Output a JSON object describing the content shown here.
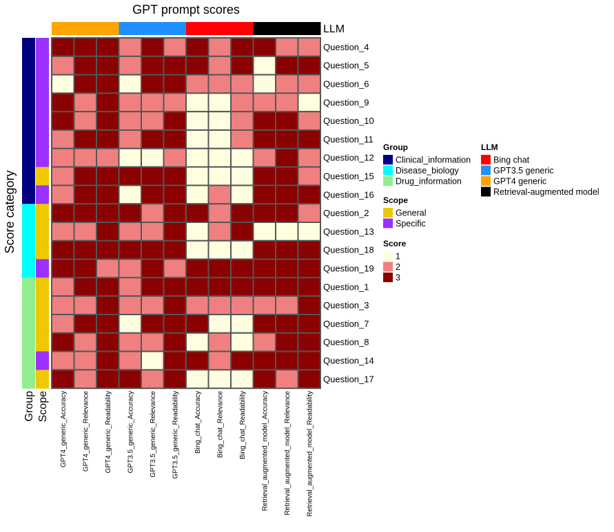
{
  "chart_data": {
    "type": "heatmap",
    "title": "GPT prompt scores",
    "ylabel": "Score category",
    "columns": [
      "GPT4_generic_Accuracy",
      "GPT4_generic_Relevance",
      "GPT4_generic_Readability",
      "GPT3.5_generic_Accuracy",
      "GPT3.5_generic_Relevance",
      "GPT3.5_generic_Readability",
      "Bing_chat_Accuracy",
      "Bing_chat_Relevance",
      "Bing_chat_Readability",
      "Retrieval_augmented_model_Accuracy",
      "Retrieval_augmented_model_Relevance",
      "Retrieval_augmented_model_Readability"
    ],
    "column_llm": [
      "GPT4 generic",
      "GPT4 generic",
      "GPT4 generic",
      "GPT3.5 generic",
      "GPT3.5 generic",
      "GPT3.5 generic",
      "Bing chat",
      "Bing chat",
      "Bing chat",
      "Retrieval-augmented model",
      "Retrieval-augmented model",
      "Retrieval-augmented model"
    ],
    "rows": [
      "Question_4",
      "Question_5",
      "Question_6",
      "Question_9",
      "Question_10",
      "Question_11",
      "Question_12",
      "Question_15",
      "Question_16",
      "Question_2",
      "Question_13",
      "Question_18",
      "Question_19",
      "Question_1",
      "Question_3",
      "Question_7",
      "Question_8",
      "Question_14",
      "Question_17"
    ],
    "row_group": [
      "Clinical_information",
      "Clinical_information",
      "Clinical_information",
      "Clinical_information",
      "Clinical_information",
      "Clinical_information",
      "Clinical_information",
      "Clinical_information",
      "Clinical_information",
      "Disease_biology",
      "Disease_biology",
      "Disease_biology",
      "Disease_biology",
      "Drug_information",
      "Drug_information",
      "Drug_information",
      "Drug_information",
      "Drug_information",
      "Drug_information"
    ],
    "row_scope": [
      "Specific",
      "Specific",
      "Specific",
      "Specific",
      "Specific",
      "Specific",
      "Specific",
      "General",
      "Specific",
      "General",
      "General",
      "General",
      "Specific",
      "General",
      "General",
      "General",
      "General",
      "Specific",
      "General"
    ],
    "values": [
      [
        3,
        3,
        3,
        2,
        3,
        2,
        3,
        2,
        3,
        3,
        2,
        2
      ],
      [
        2,
        3,
        3,
        2,
        3,
        3,
        3,
        2,
        3,
        1,
        3,
        3
      ],
      [
        1,
        3,
        3,
        1,
        3,
        3,
        2,
        2,
        2,
        1,
        2,
        2
      ],
      [
        3,
        2,
        3,
        2,
        2,
        2,
        1,
        1,
        2,
        2,
        2,
        1
      ],
      [
        3,
        2,
        3,
        2,
        2,
        3,
        1,
        1,
        2,
        3,
        3,
        2
      ],
      [
        2,
        3,
        3,
        2,
        3,
        3,
        1,
        1,
        2,
        3,
        3,
        3
      ],
      [
        2,
        2,
        2,
        1,
        1,
        2,
        1,
        1,
        1,
        2,
        3,
        2
      ],
      [
        2,
        3,
        3,
        3,
        3,
        3,
        1,
        1,
        1,
        3,
        3,
        2
      ],
      [
        2,
        3,
        3,
        1,
        3,
        3,
        1,
        2,
        1,
        3,
        3,
        3
      ],
      [
        3,
        3,
        3,
        3,
        2,
        3,
        3,
        2,
        3,
        3,
        3,
        2
      ],
      [
        2,
        2,
        3,
        2,
        2,
        3,
        1,
        2,
        3,
        1,
        1,
        1
      ],
      [
        3,
        3,
        3,
        3,
        3,
        3,
        1,
        1,
        1,
        3,
        3,
        3
      ],
      [
        3,
        3,
        2,
        2,
        3,
        2,
        3,
        3,
        3,
        3,
        3,
        3
      ],
      [
        2,
        3,
        3,
        2,
        3,
        3,
        3,
        3,
        3,
        3,
        3,
        3
      ],
      [
        2,
        2,
        3,
        2,
        2,
        3,
        2,
        2,
        2,
        2,
        2,
        3
      ],
      [
        2,
        3,
        3,
        1,
        3,
        3,
        3,
        1,
        1,
        3,
        3,
        3
      ],
      [
        3,
        2,
        3,
        2,
        2,
        3,
        1,
        2,
        1,
        2,
        3,
        3
      ],
      [
        2,
        2,
        3,
        2,
        1,
        3,
        3,
        2,
        3,
        3,
        3,
        3
      ],
      [
        3,
        2,
        3,
        3,
        2,
        3,
        1,
        1,
        1,
        3,
        2,
        3
      ]
    ],
    "annotation_labels": {
      "top": "LLM",
      "left": [
        "Group",
        "Scope"
      ]
    },
    "legends": {
      "group": {
        "title": "Group",
        "items": [
          {
            "label": "Clinical_information",
            "color": "#000080"
          },
          {
            "label": "Disease_biology",
            "color": "#00FFFF"
          },
          {
            "label": "Drug_information",
            "color": "#90EE90"
          }
        ]
      },
      "scope": {
        "title": "Scope",
        "items": [
          {
            "label": "General",
            "color": "#EEC900"
          },
          {
            "label": "Specific",
            "color": "#9B30FF"
          }
        ]
      },
      "score": {
        "title": "Score",
        "items": [
          {
            "label": "1",
            "color": "#FFFFE0"
          },
          {
            "label": "2",
            "color": "#F08080"
          },
          {
            "label": "3",
            "color": "#8B0000"
          }
        ]
      },
      "llm": {
        "title": "LLM",
        "items": [
          {
            "label": "Bing chat",
            "color": "#FF0000"
          },
          {
            "label": "GPT3.5 generic",
            "color": "#1E90FF"
          },
          {
            "label": "GPT4 generic",
            "color": "#FFA500"
          },
          {
            "label": "Retrieval-augmented model",
            "color": "#000000"
          }
        ]
      }
    },
    "score_colors": {
      "1": "#FFFFE0",
      "2": "#F08080",
      "3": "#8B0000"
    },
    "llm_colors": {
      "Bing chat": "#FF0000",
      "GPT3.5 generic": "#1E90FF",
      "GPT4 generic": "#FFA500",
      "Retrieval-augmented model": "#000000"
    },
    "group_colors": {
      "Clinical_information": "#000080",
      "Disease_biology": "#00FFFF",
      "Drug_information": "#90EE90"
    },
    "scope_colors": {
      "General": "#EEC900",
      "Specific": "#9B30FF"
    },
    "grid_color": "#555555"
  }
}
